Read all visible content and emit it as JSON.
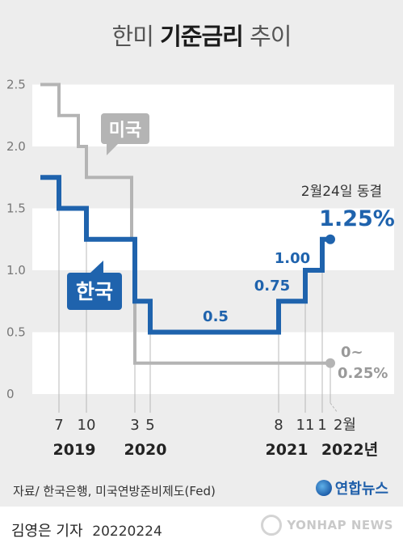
{
  "title": {
    "light1": "한미",
    "bold": "기준금리",
    "light2": "추이"
  },
  "chart_data": {
    "type": "line",
    "ylim": [
      0,
      2.5
    ],
    "yticks": [
      "0",
      "0.5",
      "1.0",
      "1.5",
      "2.0",
      "2.5"
    ],
    "series": [
      {
        "name": "미국",
        "color": "#b4b4b4",
        "steps": [
          [
            "2019-06",
            2.5
          ],
          [
            "2019-07",
            2.25
          ],
          [
            "2019-09",
            2.0
          ],
          [
            "2019-10",
            1.75
          ],
          [
            "2020-03a",
            1.25
          ],
          [
            "2020-03b",
            0.25
          ],
          [
            "2022-02",
            0.25
          ]
        ]
      },
      {
        "name": "한국",
        "color": "#1f63ad",
        "steps": [
          [
            "2019-06",
            1.75
          ],
          [
            "2019-07",
            1.5
          ],
          [
            "2019-10",
            1.25
          ],
          [
            "2020-03",
            0.75
          ],
          [
            "2020-05",
            0.5
          ],
          [
            "2021-08",
            0.75
          ],
          [
            "2021-11",
            1.0
          ],
          [
            "2022-01",
            1.25
          ],
          [
            "2022-02",
            1.25
          ]
        ]
      }
    ],
    "x_tick_labels": [
      {
        "month": "7",
        "year": "2019"
      },
      {
        "month": "10",
        "year": ""
      },
      {
        "month": "3",
        "year": "2020"
      },
      {
        "month": "5",
        "year": ""
      },
      {
        "month": "8",
        "year": "2021"
      },
      {
        "month": "11",
        "year": ""
      },
      {
        "month": "1",
        "year": "2022년"
      },
      {
        "month": "2월",
        "year": ""
      }
    ],
    "data_labels": {
      "kr_05": "0.5",
      "kr_075": "0.75",
      "kr_100": "1.00",
      "kr_125": "1.25%",
      "kr_note": "2월24일 동결",
      "us_low": "0~",
      "us_low2": "0.25%"
    },
    "legend": {
      "us": "미국",
      "kr": "한국"
    }
  },
  "source": "자료/ 한국은행, 미국연방준비제도(Fed)",
  "logo_text": "연합뉴스",
  "reporter": {
    "name": "김영은 기자",
    "date": "20220224"
  },
  "watermark": "YONHAP NEWS"
}
